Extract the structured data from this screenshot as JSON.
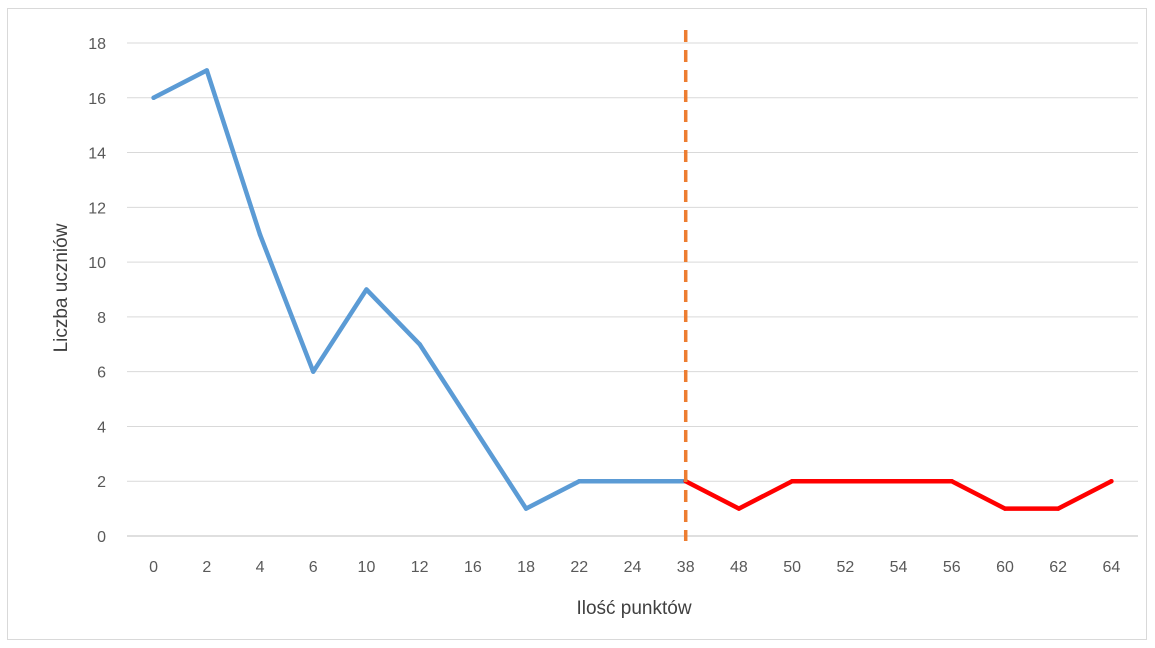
{
  "chart_data": {
    "type": "line",
    "title": "",
    "xlabel": "Ilość punktów",
    "ylabel": "Liczba uczniów",
    "categories": [
      "0",
      "2",
      "4",
      "6",
      "10",
      "12",
      "16",
      "18",
      "22",
      "24",
      "38",
      "48",
      "50",
      "52",
      "54",
      "56",
      "60",
      "62",
      "64"
    ],
    "ylim": [
      0,
      18
    ],
    "yticks": [
      0,
      2,
      4,
      6,
      8,
      10,
      12,
      14,
      16,
      18
    ],
    "grid": true,
    "series": [
      {
        "color": "#5b9bd5",
        "x": [
          "0",
          "2",
          "4",
          "6",
          "10",
          "12",
          "16",
          "18",
          "22",
          "24",
          "38"
        ],
        "values": [
          16,
          17,
          11,
          6,
          9,
          7,
          4,
          1,
          2,
          2,
          2
        ]
      },
      {
        "color": "#ff0000",
        "x": [
          "38",
          "48",
          "50",
          "52",
          "54",
          "56",
          "60",
          "62",
          "64"
        ],
        "values": [
          2,
          1,
          2,
          2,
          2,
          2,
          1,
          1,
          2
        ]
      }
    ],
    "annotations": [
      {
        "type": "vertical-dashed-line",
        "x": "38",
        "color": "#ed7d31"
      }
    ]
  }
}
